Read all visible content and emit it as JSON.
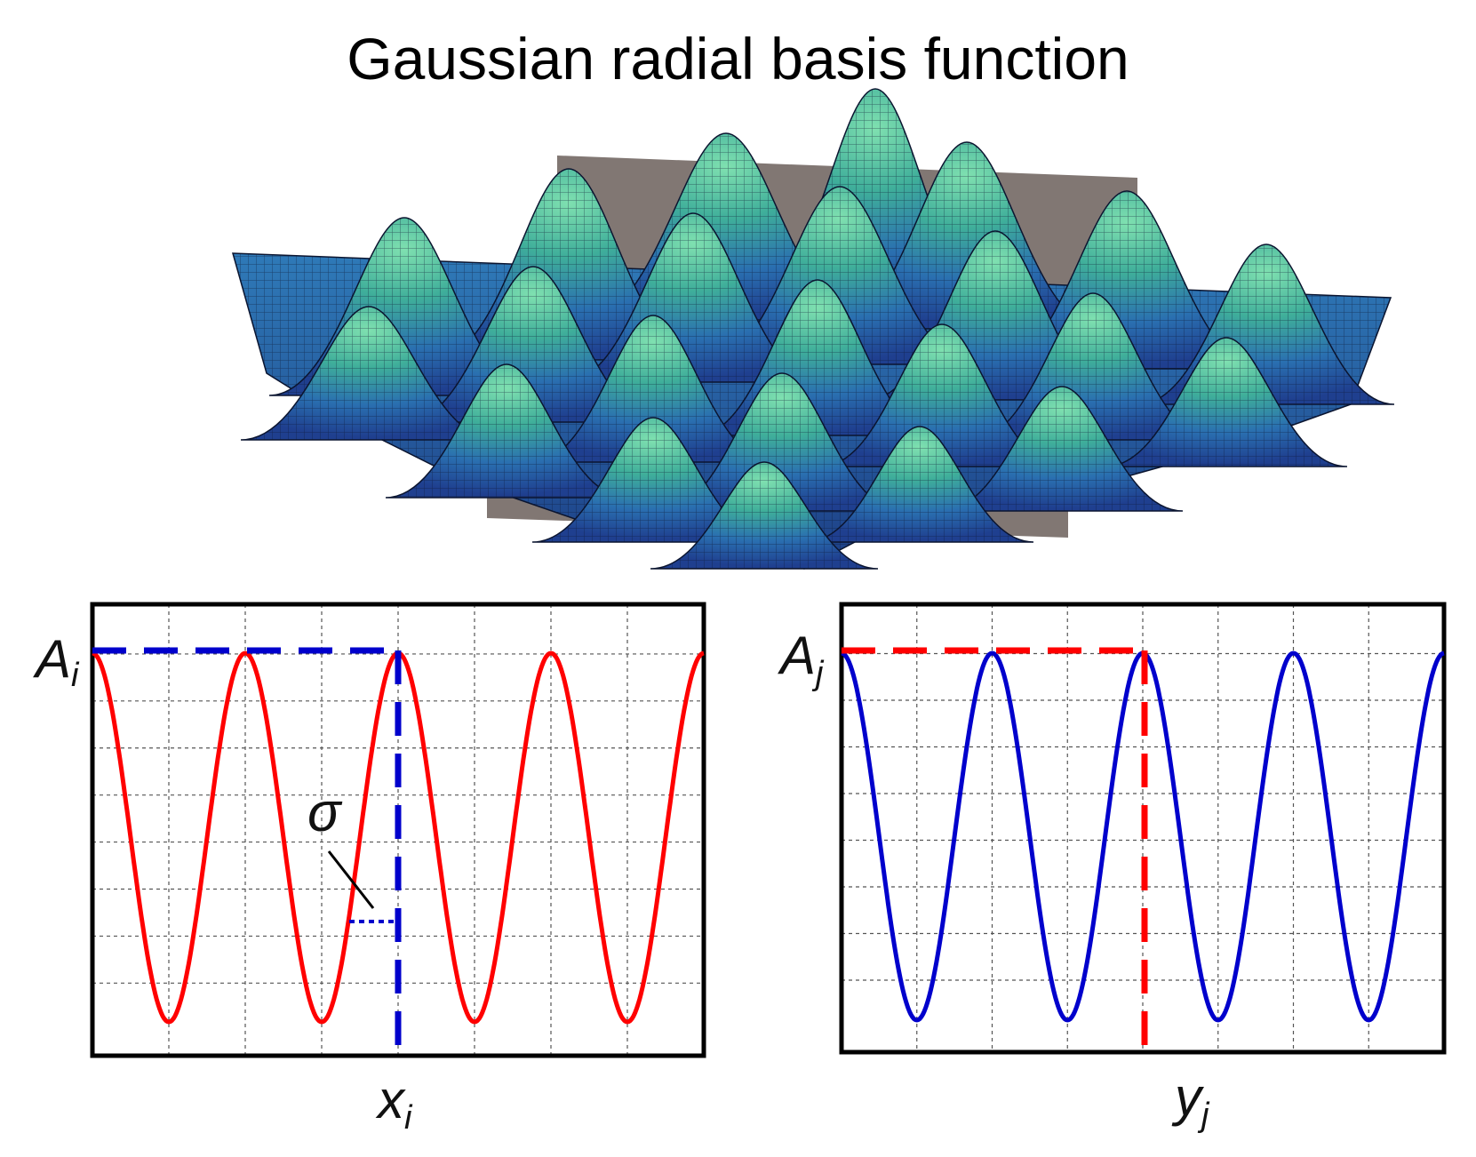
{
  "title": "Gaussian radial basis function",
  "surface": {
    "colors": {
      "low": "#1f3f8f",
      "mid": "#2a6fb0",
      "high": "#58c9a0",
      "plane": "#6b5f5a",
      "mesh": "#0b1530"
    }
  },
  "left_plot": {
    "amplitude_label": "A",
    "amplitude_subscript": "i",
    "axis_label": "x",
    "axis_subscript": "i",
    "sigma_label": "σ",
    "curve_color": "#ff0000",
    "guide_color": "#0000cc",
    "cycles": 4,
    "peak_phase": "start"
  },
  "right_plot": {
    "amplitude_label": "A",
    "amplitude_subscript": "j",
    "axis_label": "y",
    "axis_subscript": "j",
    "curve_color": "#0000cc",
    "guide_color": "#ff0000",
    "cycles": 4,
    "peak_phase": "start"
  }
}
